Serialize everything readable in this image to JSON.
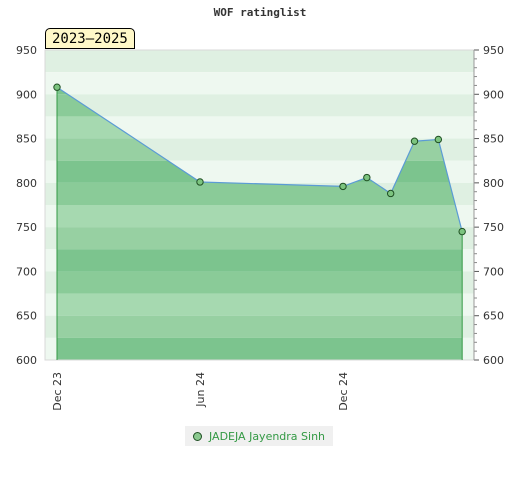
{
  "chart_data": {
    "type": "area",
    "title": "WOF ratinglist",
    "period_badge": "2023–2025",
    "x_tick_labels": [
      "Dec 23",
      "Jun 24",
      "Dec 24"
    ],
    "ylim": [
      600,
      950
    ],
    "y_ticks": [
      600,
      650,
      700,
      750,
      800,
      850,
      900,
      950
    ],
    "series": [
      {
        "name": "JADEJA Jayendra Sinh",
        "points": [
          {
            "x": "2023-12",
            "y": 908
          },
          {
            "x": "2024-06",
            "y": 801
          },
          {
            "x": "2024-12",
            "y": 796
          },
          {
            "x": "2025-01",
            "y": 806
          },
          {
            "x": "2025-02",
            "y": 788
          },
          {
            "x": "2025-03",
            "y": 847
          },
          {
            "x": "2025-04",
            "y": 849
          },
          {
            "x": "2025-05",
            "y": 745
          }
        ]
      }
    ],
    "grid": true,
    "legend_position": "bottom-center",
    "colors": {
      "line": "#5b9bd5",
      "fill": "#79c08a",
      "marker_fill": "#7cc47f",
      "marker_stroke": "#1f4f23",
      "drop_line": "#339944",
      "band_light": "#e8f5ea",
      "band_dark": "#a8d8b0",
      "legend_text": "#339944"
    }
  }
}
